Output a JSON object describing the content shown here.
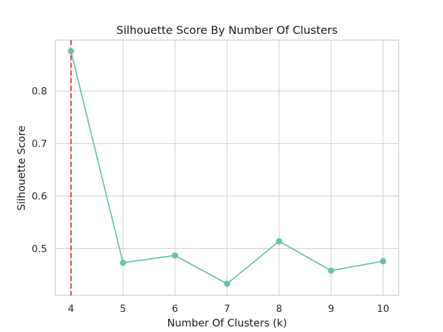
{
  "chart_data": {
    "type": "line",
    "title": "Silhouette Score By Number Of Clusters",
    "xlabel": "Number Of Clusters (k)",
    "ylabel": "Silhouette Score",
    "x": [
      4,
      5,
      6,
      7,
      8,
      9,
      10
    ],
    "series": [
      {
        "values": [
          0.876,
          0.473,
          0.487,
          0.433,
          0.514,
          0.458,
          0.476
        ],
        "color": "#66c2a5",
        "marker": "circle"
      }
    ],
    "xlim": [
      3.7,
      10.3
    ],
    "ylim": [
      0.411,
      0.897
    ],
    "xticks": [
      4,
      5,
      6,
      7,
      8,
      9,
      10
    ],
    "yticks": [
      0.5,
      0.6,
      0.7,
      0.8
    ],
    "ytick_labels": [
      "0.5",
      "0.6",
      "0.7",
      "0.8"
    ],
    "grid": true,
    "reference_line": {
      "orientation": "vertical",
      "x": 4,
      "style": "dashed",
      "color": "#e41a1c"
    }
  }
}
